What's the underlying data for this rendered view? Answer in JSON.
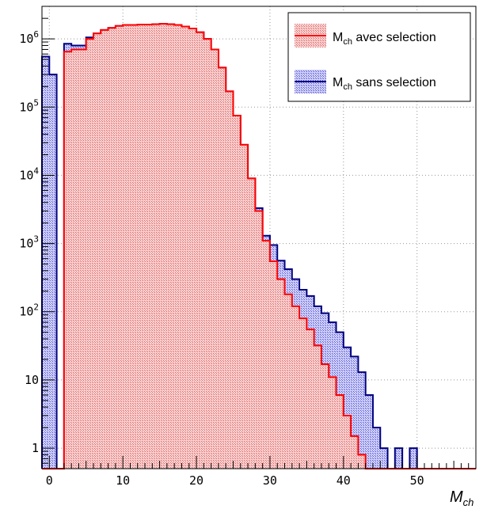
{
  "chart_data": {
    "type": "bar",
    "xlabel": "M_ch",
    "xlabel_main": "M",
    "xlabel_sub": "ch",
    "ylabel": "",
    "xlim": [
      -1,
      58
    ],
    "ylim": [
      0.5,
      3000000
    ],
    "log_y": true,
    "grid": true,
    "legend_position": "top-right",
    "x_ticks": [
      {
        "value": 0,
        "label": "0"
      },
      {
        "value": 10,
        "label": "10"
      },
      {
        "value": 20,
        "label": "20"
      },
      {
        "value": 30,
        "label": "30"
      },
      {
        "value": 40,
        "label": "40"
      },
      {
        "value": 50,
        "label": "50"
      }
    ],
    "y_ticks": [
      {
        "value": 1,
        "base": "1",
        "exp": ""
      },
      {
        "value": 10,
        "base": "10",
        "exp": ""
      },
      {
        "value": 100,
        "base": "10",
        "exp": "2"
      },
      {
        "value": 1000,
        "base": "10",
        "exp": "3"
      },
      {
        "value": 10000,
        "base": "10",
        "exp": "4"
      },
      {
        "value": 100000,
        "base": "10",
        "exp": "5"
      },
      {
        "value": 1000000,
        "base": "10",
        "exp": "6"
      }
    ],
    "bin_edges": [
      -1,
      0,
      1,
      2,
      3,
      4,
      5,
      6,
      7,
      8,
      9,
      10,
      11,
      12,
      13,
      14,
      15,
      16,
      17,
      18,
      19,
      20,
      21,
      22,
      23,
      24,
      25,
      26,
      27,
      28,
      29,
      30,
      31,
      32,
      33,
      34,
      35,
      36,
      37,
      38,
      39,
      40,
      41,
      42,
      43,
      44,
      45,
      46,
      47,
      48,
      49,
      50,
      51,
      52,
      53,
      54,
      55,
      56,
      57,
      58
    ],
    "series": [
      {
        "name": "M_ch sans selection",
        "name_main": "M",
        "name_sub": "ch",
        "name_rest": " sans selection",
        "color": "#00007f",
        "fill": "#b3b3ee",
        "values": [
          550000,
          300000,
          0,
          850000,
          800000,
          800000,
          1050000,
          1200000,
          1350000,
          1450000,
          1550000,
          1600000,
          1600000,
          1620000,
          1620000,
          1640000,
          1660000,
          1640000,
          1600000,
          1520000,
          1420000,
          1250000,
          1000000,
          700000,
          380000,
          170000,
          75000,
          28000,
          9000,
          3300,
          1300,
          950,
          560,
          420,
          300,
          210,
          170,
          120,
          95,
          70,
          50,
          30,
          22,
          13,
          6,
          2,
          1,
          0.3,
          1,
          0.3,
          1,
          0,
          0,
          0,
          0,
          0,
          0,
          0,
          0
        ]
      },
      {
        "name": "M_ch avec selection",
        "name_main": "M",
        "name_sub": "ch",
        "name_rest": " avec selection",
        "color": "#ff0000",
        "fill": "#f5b8b8",
        "values": [
          0,
          0,
          0,
          650000,
          700000,
          700000,
          1000000,
          1200000,
          1350000,
          1450000,
          1550000,
          1600000,
          1600000,
          1620000,
          1620000,
          1640000,
          1660000,
          1640000,
          1600000,
          1520000,
          1420000,
          1250000,
          1000000,
          700000,
          380000,
          170000,
          75000,
          28000,
          9000,
          3000,
          1100,
          550,
          300,
          180,
          120,
          80,
          55,
          32,
          17,
          11,
          6,
          3,
          1.5,
          0.8,
          0.3,
          0,
          0,
          0,
          0,
          0,
          0,
          0,
          0,
          0,
          0,
          0,
          0,
          0,
          0
        ]
      }
    ]
  }
}
